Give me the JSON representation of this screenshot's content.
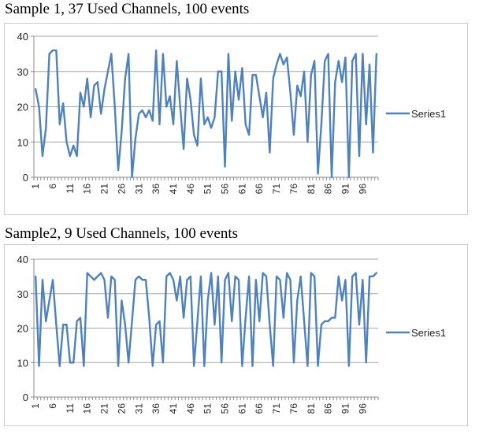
{
  "accent_color": "#4F81BD",
  "chart_data": [
    {
      "type": "line",
      "title": "Sample 1, 37 Used Channels, 100 events",
      "xlabel": "",
      "ylabel": "",
      "ylim": [
        0,
        40
      ],
      "yticks": [
        0,
        10,
        20,
        30,
        40
      ],
      "grid": true,
      "legend_position": "right",
      "legend": "Series1",
      "line_color": "#4F81BD",
      "x_tick_labels": [
        "1",
        "6",
        "11",
        "16",
        "21",
        "26",
        "31",
        "36",
        "41",
        "46",
        "51",
        "56",
        "61",
        "66",
        "71",
        "76",
        "81",
        "86",
        "91",
        "96"
      ],
      "x_tick_step": 5,
      "n_points": 100,
      "series": [
        {
          "name": "Series1",
          "values": [
            25,
            20,
            6,
            14,
            35,
            36,
            36,
            15,
            21,
            10,
            6,
            9,
            6,
            24,
            20,
            28,
            17,
            26,
            27,
            18,
            25,
            30,
            35,
            20,
            2,
            13,
            28,
            35,
            0,
            11,
            18,
            19,
            17,
            19,
            16,
            36,
            15,
            35,
            20,
            23,
            15,
            33,
            20,
            8,
            28,
            22,
            12,
            9,
            28,
            15,
            17,
            14,
            17,
            30,
            30,
            3,
            35,
            16,
            30,
            22,
            31,
            15,
            12,
            29,
            29,
            23,
            17,
            24,
            7,
            28,
            32,
            35,
            32,
            34,
            24,
            12,
            26,
            23,
            30,
            10,
            29,
            33,
            1,
            15,
            33,
            35,
            0,
            27,
            33,
            27,
            34,
            0,
            33,
            35,
            6,
            35,
            15,
            32,
            7,
            35
          ]
        }
      ]
    },
    {
      "type": "line",
      "title": "Sample2, 9 Used Channels, 100 events",
      "xlabel": "",
      "ylabel": "",
      "ylim": [
        0,
        40
      ],
      "yticks": [
        0,
        10,
        20,
        30,
        40
      ],
      "grid": true,
      "legend_position": "right",
      "legend": "Series1",
      "line_color": "#4F81BD",
      "x_tick_labels": [
        "1",
        "6",
        "11",
        "16",
        "21",
        "26",
        "31",
        "36",
        "41",
        "46",
        "51",
        "56",
        "61",
        "66",
        "71",
        "76",
        "81",
        "86",
        "91",
        "96"
      ],
      "x_tick_step": 5,
      "n_points": 100,
      "series": [
        {
          "name": "Series1",
          "values": [
            35,
            9,
            34,
            22,
            28,
            34,
            21,
            9,
            21,
            21,
            10,
            10,
            22,
            23,
            9,
            36,
            35,
            34,
            35,
            36,
            34,
            23,
            35,
            34,
            9,
            28,
            21,
            10,
            22,
            34,
            35,
            34,
            34,
            23,
            9,
            21,
            22,
            10,
            35,
            36,
            34,
            28,
            35,
            23,
            34,
            35,
            9,
            22,
            35,
            9,
            28,
            36,
            21,
            35,
            10,
            34,
            36,
            22,
            35,
            34,
            9,
            23,
            35,
            9,
            34,
            22,
            36,
            35,
            21,
            9,
            35,
            34,
            23,
            36,
            34,
            10,
            28,
            35,
            22,
            9,
            36,
            35,
            9,
            21,
            22,
            22,
            23,
            23,
            35,
            28,
            34,
            9,
            35,
            36,
            21,
            34,
            10,
            35,
            35,
            36
          ]
        }
      ]
    }
  ]
}
